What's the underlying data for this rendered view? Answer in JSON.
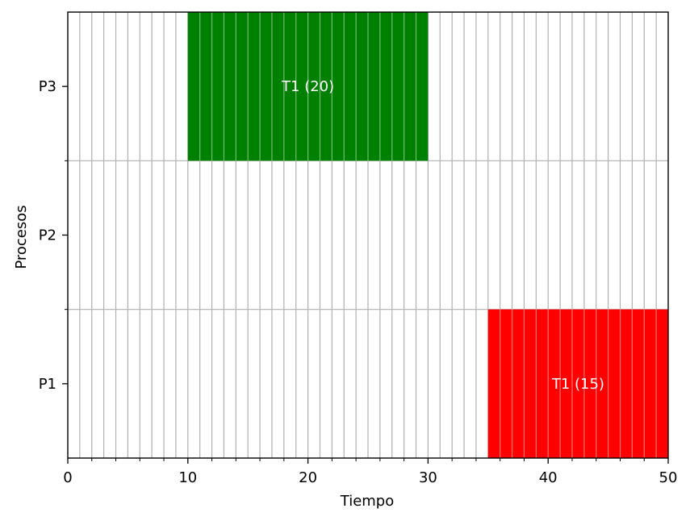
{
  "chart_data": {
    "type": "gantt",
    "title": "",
    "xlabel": "Tiempo",
    "ylabel": "Procesos",
    "xlim": [
      0,
      50
    ],
    "x_ticks": [
      0,
      10,
      20,
      30,
      40,
      50
    ],
    "x_minor_step": 1,
    "categories": [
      "P1",
      "P2",
      "P3"
    ],
    "grid": true,
    "tasks": [
      {
        "process": "P3",
        "label": "T1 (20)",
        "start": 10,
        "duration": 20,
        "color": "#008000"
      },
      {
        "process": "P1",
        "label": "T1 (15)",
        "start": 35,
        "duration": 15,
        "color": "#ff0000"
      }
    ]
  }
}
